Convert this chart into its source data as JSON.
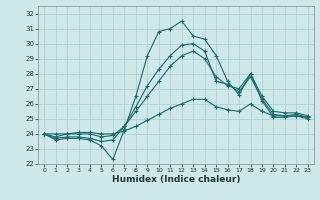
{
  "xlabel": "Humidex (Indice chaleur)",
  "xlim": [
    -0.5,
    23.5
  ],
  "ylim": [
    22,
    32.5
  ],
  "yticks": [
    22,
    23,
    24,
    25,
    26,
    27,
    28,
    29,
    30,
    31,
    32
  ],
  "xticks": [
    0,
    1,
    2,
    3,
    4,
    5,
    6,
    7,
    8,
    9,
    10,
    11,
    12,
    13,
    14,
    15,
    16,
    17,
    18,
    19,
    20,
    21,
    22,
    23
  ],
  "background_color": "#cfe8ea",
  "grid_color": "#a8cdd0",
  "line_color": "#1a6b6b",
  "series": [
    [
      24.0,
      23.6,
      23.7,
      23.7,
      23.6,
      23.2,
      22.3,
      24.3,
      26.5,
      29.2,
      30.8,
      31.0,
      31.5,
      30.5,
      30.3,
      29.2,
      27.5,
      26.6,
      28.0,
      26.2,
      25.1,
      25.1,
      25.2,
      25.0
    ],
    [
      24.0,
      23.7,
      23.8,
      23.8,
      23.7,
      23.5,
      23.6,
      24.5,
      25.8,
      27.2,
      28.3,
      29.2,
      29.9,
      30.0,
      29.5,
      27.5,
      27.3,
      26.8,
      27.8,
      26.3,
      25.3,
      25.2,
      25.3,
      25.1
    ],
    [
      24.0,
      23.8,
      24.0,
      24.0,
      24.0,
      23.8,
      23.9,
      24.5,
      25.5,
      26.5,
      27.5,
      28.5,
      29.2,
      29.5,
      29.0,
      27.8,
      27.2,
      27.0,
      28.0,
      26.5,
      25.5,
      25.4,
      25.4,
      25.2
    ],
    [
      24.0,
      24.0,
      24.0,
      24.1,
      24.1,
      24.0,
      24.0,
      24.2,
      24.5,
      24.9,
      25.3,
      25.7,
      26.0,
      26.3,
      26.3,
      25.8,
      25.6,
      25.5,
      26.0,
      25.5,
      25.2,
      25.2,
      25.2,
      25.1
    ]
  ]
}
